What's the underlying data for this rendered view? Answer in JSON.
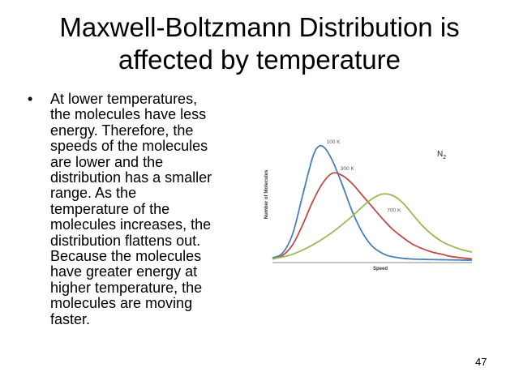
{
  "slide": {
    "title_lines": [
      "Maxwell-Boltzmann Distribution is",
      "affected by temperature"
    ],
    "bullet_marker": "•",
    "bullet_lines": [
      "At lower temperatures,",
      "the molecules have less",
      "energy. Therefore, the",
      "speeds of the molecules",
      "are lower and the",
      "distribution has a smaller",
      "range. As the",
      "temperature of the",
      "molecules increases, the",
      "distribution flattens out.",
      "Because the molecules",
      "have greater energy at",
      "higher temperature, the",
      "molecules are moving",
      "faster."
    ],
    "page_number": "47"
  },
  "chart_data": {
    "type": "line",
    "xlabel": "Speed",
    "ylabel": "Number of Molecules",
    "gas_main": "N",
    "gas_sub": "2",
    "grid": false,
    "legend": "none",
    "series": [
      {
        "name": "100 K",
        "color": "#4a7ebb",
        "points": [
          [
            0,
            0.02
          ],
          [
            0.05,
            0.06
          ],
          [
            0.1,
            0.22
          ],
          [
            0.15,
            0.55
          ],
          [
            0.2,
            0.88
          ],
          [
            0.23,
            0.98
          ],
          [
            0.26,
            0.97
          ],
          [
            0.3,
            0.86
          ],
          [
            0.35,
            0.65
          ],
          [
            0.4,
            0.42
          ],
          [
            0.45,
            0.24
          ],
          [
            0.5,
            0.12
          ],
          [
            0.55,
            0.06
          ],
          [
            0.6,
            0.03
          ],
          [
            0.7,
            0.01
          ],
          [
            1.0,
            0.0
          ]
        ]
      },
      {
        "name": "300 K",
        "color": "#be4b48",
        "points": [
          [
            0,
            0.01
          ],
          [
            0.05,
            0.04
          ],
          [
            0.1,
            0.13
          ],
          [
            0.15,
            0.3
          ],
          [
            0.2,
            0.5
          ],
          [
            0.25,
            0.66
          ],
          [
            0.3,
            0.75
          ],
          [
            0.35,
            0.73
          ],
          [
            0.4,
            0.66
          ],
          [
            0.45,
            0.56
          ],
          [
            0.5,
            0.46
          ],
          [
            0.55,
            0.36
          ],
          [
            0.6,
            0.27
          ],
          [
            0.65,
            0.2
          ],
          [
            0.7,
            0.14
          ],
          [
            0.75,
            0.1
          ],
          [
            0.8,
            0.07
          ],
          [
            0.85,
            0.05
          ],
          [
            0.9,
            0.03
          ],
          [
            1.0,
            0.01
          ]
        ]
      },
      {
        "name": "700 K",
        "color": "#98b954",
        "points": [
          [
            0,
            0.01
          ],
          [
            0.1,
            0.05
          ],
          [
            0.2,
            0.13
          ],
          [
            0.3,
            0.24
          ],
          [
            0.4,
            0.38
          ],
          [
            0.45,
            0.46
          ],
          [
            0.5,
            0.53
          ],
          [
            0.55,
            0.57
          ],
          [
            0.6,
            0.56
          ],
          [
            0.65,
            0.5
          ],
          [
            0.7,
            0.4
          ],
          [
            0.75,
            0.3
          ],
          [
            0.8,
            0.22
          ],
          [
            0.85,
            0.16
          ],
          [
            0.9,
            0.12
          ],
          [
            0.95,
            0.09
          ],
          [
            1.0,
            0.07
          ]
        ]
      }
    ]
  }
}
